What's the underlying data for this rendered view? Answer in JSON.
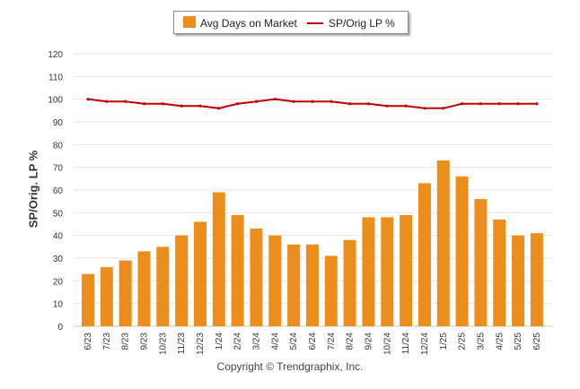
{
  "legend": {
    "bar_label": "Avg Days on Market",
    "line_label": "SP/Orig LP %"
  },
  "copyright": "Copyright © Trendgraphix, Inc.",
  "colors": {
    "bar": "#EC8E1C",
    "line": "#C00000",
    "grid": "#e6e6e6"
  },
  "chart_data": {
    "type": "bar",
    "ylabel": "SP/Orig. LP %",
    "ylim": [
      0,
      120
    ],
    "yticks": [
      0,
      10,
      20,
      30,
      40,
      50,
      60,
      70,
      80,
      90,
      100,
      110,
      120
    ],
    "categories": [
      "6/23",
      "7/23",
      "8/23",
      "9/23",
      "10/23",
      "11/23",
      "12/23",
      "1/24",
      "2/24",
      "3/24",
      "4/24",
      "5/24",
      "6/24",
      "7/24",
      "8/24",
      "9/24",
      "10/24",
      "11/24",
      "12/24",
      "1/25",
      "2/25",
      "3/25",
      "4/25",
      "5/25",
      "6/25"
    ],
    "series": [
      {
        "name": "Avg Days on Market",
        "type": "bar",
        "values": [
          23,
          26,
          29,
          33,
          35,
          40,
          46,
          59,
          49,
          43,
          40,
          36,
          36,
          31,
          38,
          48,
          48,
          49,
          63,
          73,
          66,
          56,
          47,
          40,
          41
        ]
      },
      {
        "name": "SP/Orig LP %",
        "type": "line",
        "values": [
          100,
          99,
          99,
          98,
          98,
          97,
          97,
          96,
          98,
          99,
          100,
          99,
          99,
          99,
          98,
          98,
          97,
          97,
          96,
          96,
          98,
          98,
          98,
          98,
          98
        ]
      }
    ]
  }
}
